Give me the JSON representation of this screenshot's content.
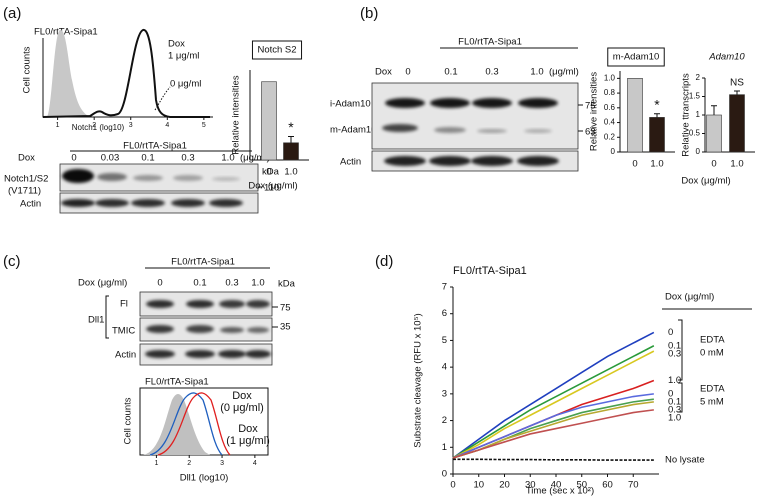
{
  "panels": {
    "a": {
      "label": "(a)",
      "histogram": {
        "title": "FL0/rtTA-Sipa1",
        "y_label": "Cell counts",
        "x_label": "Notch1 (log10)",
        "xlim": [
          0.6,
          5.25
        ],
        "xticks": [
          1,
          2,
          3,
          4,
          5
        ],
        "annotations": [
          "Dox",
          "1 μg/ml",
          "0 μg/ml"
        ]
      },
      "blot": {
        "title": "FL0/rtTA-Sipa1",
        "dox_label": "Dox",
        "lanes": [
          "0",
          "0.03",
          "0.1",
          "0.3",
          "1.0"
        ],
        "unit": "(μg/ml)",
        "kda": "kDa",
        "rows": [
          {
            "label": "Notch1/S2",
            "sublabel": "(V1711)",
            "marker": "110"
          },
          {
            "label": "Actin"
          }
        ]
      }
    },
    "b": {
      "label": "(b)",
      "blot": {
        "title": "FL0/rtTA-Sipa1",
        "dox_label": "Dox",
        "lanes": [
          "0",
          "0.1",
          "0.3",
          "1.0"
        ],
        "unit": "(μg/ml)",
        "rows": [
          {
            "label": "i-Adam10",
            "marker": "75"
          },
          {
            "label": "m-Adam10",
            "marker": "63"
          },
          {
            "label": "Actin"
          }
        ]
      }
    },
    "c": {
      "label": "(c)",
      "blot": {
        "title": "FL0/rtTA-Sipa1",
        "dox_label": "Dox (μg/ml)",
        "lanes": [
          "0",
          "0.1",
          "0.3",
          "1.0"
        ],
        "kda": "kDa",
        "group": "Dll1",
        "rows": [
          {
            "label": "Fl",
            "marker": "75"
          },
          {
            "label": "TMIC",
            "marker": "35"
          },
          {
            "label": "Actin"
          }
        ]
      },
      "histogram": {
        "title": "FL0/rtTA-Sipa1",
        "y_label": "Cell counts",
        "x_label": "Dll1 (log10)",
        "xlim": [
          0.5,
          4.4
        ],
        "xticks": [
          1,
          2,
          3,
          4
        ],
        "legend": [
          {
            "text": "Dox",
            "sub": "(0 μg/ml)",
            "color": "#1f5fbf"
          },
          {
            "text": "Dox",
            "sub": "(1 μg/ml)",
            "color": "#e02020"
          }
        ]
      }
    },
    "d": {
      "label": "(d)"
    }
  },
  "chart_data": [
    {
      "type": "bar",
      "title": "Notch S2",
      "y_label": "Relative intensities",
      "x_label": "Dox (μg/ml)",
      "categories": [
        "0",
        "1.0"
      ],
      "values": [
        1.0,
        0.22
      ],
      "errors": [
        null,
        0.08
      ],
      "colors": [
        "#c8c8c8",
        "#2a1a12"
      ],
      "ylim": [
        0,
        1.15
      ],
      "annotation": "*"
    },
    {
      "type": "bar",
      "title": "m-Adam10",
      "y_label": "Relative intensities",
      "categories": [
        "0",
        "1.0"
      ],
      "values": [
        1.0,
        0.47
      ],
      "errors": [
        null,
        0.05
      ],
      "colors": [
        "#c8c8c8",
        "#2a1a12"
      ],
      "ylim": [
        0,
        1.1
      ],
      "yticks": [
        0,
        0.2,
        0.4,
        0.6,
        0.8,
        {
          "value": 1,
          "label": "1.0"
        }
      ],
      "annotation": "*"
    },
    {
      "type": "bar",
      "title": "Adam10",
      "y_label": "Relative ttranscripts",
      "x_label": "Dox (μg/ml)",
      "categories": [
        "0",
        "1.0"
      ],
      "values": [
        1.0,
        1.55
      ],
      "errors": [
        0.25,
        0.1
      ],
      "colors": [
        "#c8c8c8",
        "#2a1a12"
      ],
      "ylim": [
        0,
        2
      ],
      "yticks": [
        0,
        0.5,
        1,
        1.5,
        2
      ],
      "annotation": "NS"
    },
    {
      "type": "line",
      "title": "FL0/rtTA-Sipa1",
      "y_label": "Substrate cleavage (RFU x 10⁵)",
      "x_label": "Time (sec x 10²)",
      "xlim": [
        0,
        80
      ],
      "ylim": [
        0,
        7
      ],
      "xticks": [
        0,
        10,
        20,
        30,
        40,
        50,
        60,
        70
      ],
      "yticks": [
        0,
        1,
        2,
        3,
        4,
        5,
        6,
        7
      ],
      "x": [
        0,
        10,
        20,
        30,
        40,
        50,
        60,
        70,
        78
      ],
      "legend_title": "Dox (μg/ml)",
      "groups": [
        {
          "label": "EDTA",
          "sublabel": "0 mM"
        },
        {
          "label": "EDTA",
          "sublabel": "5 mM"
        }
      ],
      "series": [
        {
          "name": "0",
          "color": "#1f3fbf",
          "values": [
            0.6,
            1.3,
            2.0,
            2.6,
            3.2,
            3.8,
            4.4,
            4.9,
            5.3
          ]
        },
        {
          "name": "0.1",
          "color": "#2a9a3a",
          "values": [
            0.6,
            1.2,
            1.8,
            2.4,
            2.9,
            3.4,
            3.9,
            4.4,
            4.8
          ]
        },
        {
          "name": "0.3",
          "color": "#d8c820",
          "values": [
            0.6,
            1.1,
            1.7,
            2.2,
            2.7,
            3.2,
            3.7,
            4.2,
            4.6
          ]
        },
        {
          "name": "1.0",
          "color": "#d82020",
          "values": [
            0.6,
            1.0,
            1.4,
            1.8,
            2.2,
            2.6,
            2.9,
            3.2,
            3.5
          ]
        },
        {
          "name": "0",
          "color": "#5a6adf",
          "values": [
            0.6,
            1.0,
            1.4,
            1.8,
            2.2,
            2.5,
            2.7,
            2.9,
            3.0
          ]
        },
        {
          "name": "0.1",
          "color": "#4aa050",
          "values": [
            0.6,
            0.9,
            1.3,
            1.7,
            2.0,
            2.3,
            2.5,
            2.7,
            2.8
          ]
        },
        {
          "name": "0.3",
          "color": "#b8a830",
          "values": [
            0.6,
            0.9,
            1.3,
            1.6,
            1.9,
            2.2,
            2.4,
            2.6,
            2.7
          ]
        },
        {
          "name": "1.0",
          "color": "#c05050",
          "values": [
            0.6,
            0.9,
            1.2,
            1.5,
            1.7,
            1.9,
            2.1,
            2.3,
            2.4
          ]
        },
        {
          "name": "No lysate",
          "color": "#111111",
          "values": [
            0.55,
            0.55,
            0.54,
            0.54,
            0.53,
            0.53,
            0.52,
            0.52,
            0.52
          ]
        }
      ]
    }
  ]
}
